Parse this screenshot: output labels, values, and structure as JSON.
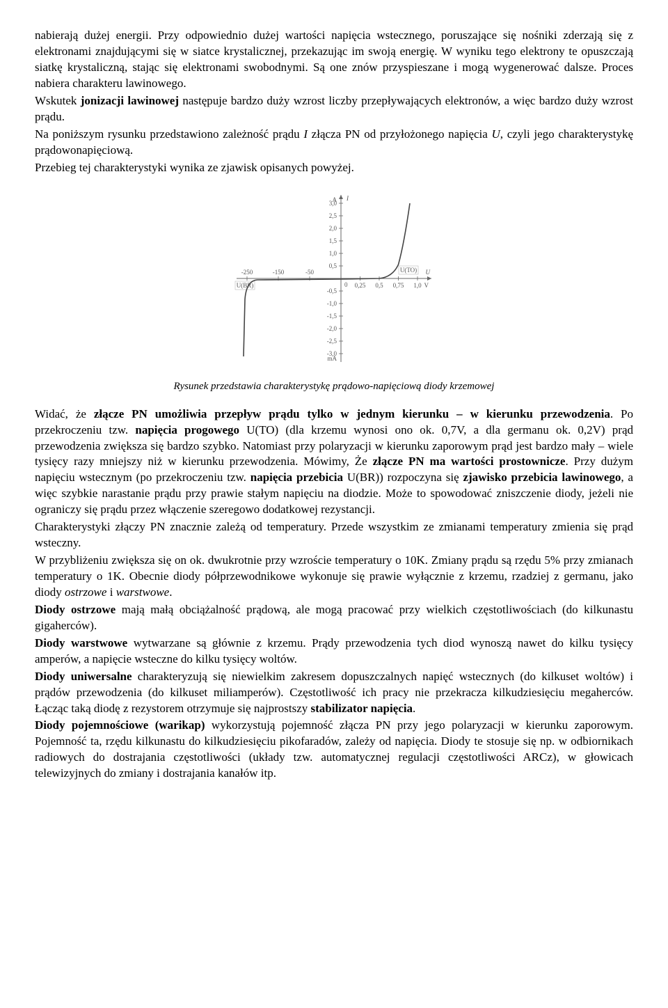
{
  "para1": "nabierają dużej energii. Przy odpowiednio dużej wartości napięcia wstecznego, poruszające się nośniki zderzają się z elektronami znajdującymi się w siatce krystalicznej, przekazując im swoją energię. W wyniku tego elektrony te opuszczają siatkę krystaliczną, stając się elektronami swobodnymi. Są one znów przyspieszane i mogą wygenerować dalsze. Proces nabiera charakteru lawinowego.",
  "para2a": "Wskutek ",
  "para2b": "jonizacji lawinowej",
  "para2c": " następuje bardzo duży wzrost liczby przepływających elektronów, a więc bardzo duży wzrost prądu.",
  "para3a": "Na poniższym rysunku przedstawiono zależność prądu ",
  "para3b": "I",
  "para3c": " złącza PN od przyłożonego napięcia ",
  "para3d": "U",
  "para3e": ", czyli jego charakterystykę prądowonapięciową.",
  "para4": "Przebieg tej charakterystyki wynika ze zjawisk opisanych powyżej.",
  "caption": "Rysunek przedstawia charakterystykę prądowo-napięciową diody krzemowej",
  "para5a": "Widać, że ",
  "para5b": "złącze PN umożliwia przepływ prądu tylko w jednym kierunku – w kierunku przewodzenia",
  "para5c": ". Po przekroczeniu tzw. ",
  "para5d": "napięcia progowego",
  "para5e": " U(TO) (dla krzemu wynosi ono ok. 0,7V, a dla germanu ok. 0,2V) prąd przewodzenia zwiększa się bardzo szybko. Natomiast przy polaryzacji w kierunku zaporowym prąd jest bardzo mały – wiele tysięcy razy mniejszy niż w kierunku przewodzenia. Mówimy, Że ",
  "para5f": "złącze PN ma wartości prostownicze",
  "para5g": ". Przy dużym napięciu wstecznym (po przekroczeniu tzw. ",
  "para5h": "napięcia przebicia",
  "para5i": " U(BR)) rozpoczyna się ",
  "para5j": "zjawisko przebicia lawinowego",
  "para5k": ", a więc szybkie narastanie prądu przy prawie stałym napięciu na diodzie. Może to spowodować zniszczenie diody, jeżeli nie ograniczy się prądu przez włączenie szeregowo dodatkowej rezystancji.",
  "para6": "Charakterystyki złączy PN znacznie zależą od temperatury. Przede wszystkim ze zmianami temperatury zmienia się prąd wsteczny.",
  "para7a": "W przybliżeniu zwiększa się on ok. dwukrotnie przy wzroście temperatury o 10K. Zmiany prądu są rzędu 5% przy zmianach temperatury o 1K. Obecnie diody półprzewodnikowe wykonuje się prawie wyłącznie z krzemu, rzadziej z germanu, jako diody ",
  "para7b": "ostrzowe",
  "para7c": " i ",
  "para7d": "warstwowe",
  "para7e": ".",
  "para8a": "Diody ostrzowe",
  "para8b": " mają małą obciążalność prądową, ale mogą pracować przy wielkich częstotliwościach (do kilkunastu gigaherców).",
  "para9a": "Diody warstwowe",
  "para9b": " wytwarzane są głównie z krzemu. Prądy przewodzenia tych diod wynoszą nawet do kilku tysięcy amperów, a napięcie wsteczne do kilku tysięcy woltów.",
  "para10a": "Diody uniwersalne",
  "para10b": " charakteryzują się niewielkim zakresem dopuszczalnych napięć wstecznych (do kilkuset woltów) i prądów przewodzenia (do kilkuset miliamperów). Częstotliwość ich pracy nie przekracza kilkudziesięciu megaherców. Łącząc taką diodę z rezystorem otrzymuje się najprostszy ",
  "para10c": "stabilizator napięcia",
  "para10d": ".",
  "para11a": "Diody pojemnościowe (warikap)",
  "para11b": " wykorzystują pojemność złącza PN przy jego polaryzacji w kierunku zaporowym. Pojemność ta, rzędu kilkunastu do kilkudziesięciu pikofaradów, zależy od napięcia. Diody te stosuje się np. w odbiornikach radiowych do dostrajania częstotliwości (układy tzw. automatycznej regulacji częstotliwości ARCz), w głowicach telewizyjnych do zmiany i dostrajania kanałów itp.",
  "chart": {
    "type": "line",
    "axis_color": "#666666",
    "curve_color": "#444444",
    "grid_color": "#bbbbbb",
    "background_color": "#ffffff",
    "y_pos_ticks": [
      "0,5",
      "1,0",
      "1,5",
      "2,0",
      "2,5",
      "3,0"
    ],
    "y_pos_unit": "A",
    "y_neg_ticks": [
      "-0,5",
      "-1,0",
      "-1,5",
      "-2,0",
      "-2,5",
      "-3,0"
    ],
    "y_neg_unit": "mA",
    "x_pos_ticks": [
      "0,25",
      "0,5",
      "0,75",
      "1,0"
    ],
    "x_pos_unit": "V",
    "x_neg_ticks": [
      "-50",
      "-150",
      "-250"
    ],
    "x_axis_label_left": "U(BR)",
    "x_axis_label_right": "U(TO)",
    "y_axis_label": "I",
    "x_axis_label": "U",
    "origin_label": "0"
  }
}
